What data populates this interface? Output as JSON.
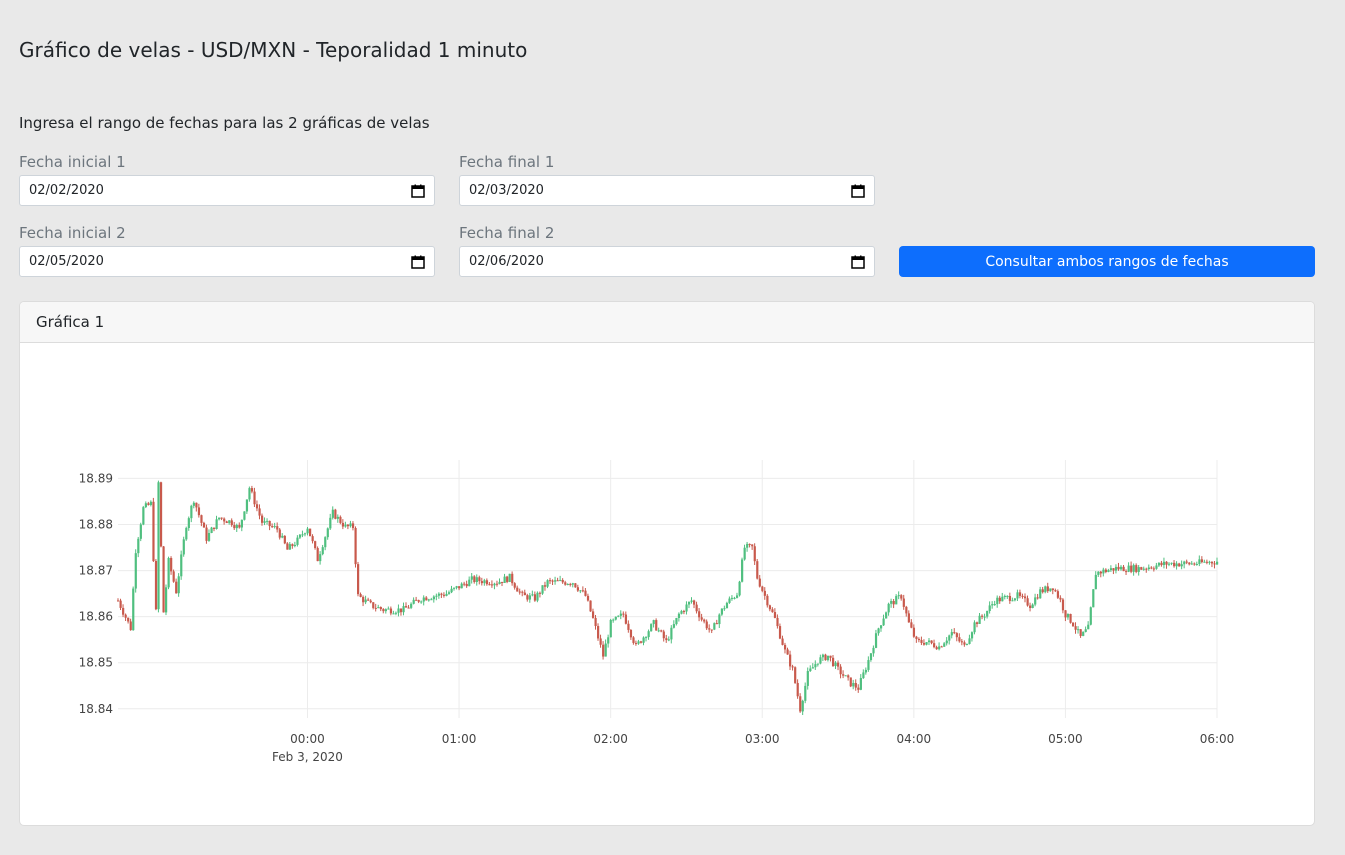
{
  "title": "Gráfico de velas - USD/MXN - Teporalidad 1 minuto",
  "instructions": "Ingresa el rango de fechas para las 2 gráficas de velas",
  "form": {
    "start1_label": "Fecha inicial 1",
    "start1_value": "02/02/2020",
    "end1_label": "Fecha final 1",
    "end1_value": "02/03/2020",
    "start2_label": "Fecha inicial 2",
    "start2_value": "02/05/2020",
    "end2_label": "Fecha final 2",
    "end2_value": "02/06/2020",
    "submit_label": "Consultar ambos rangos de fechas",
    "calendar_icon": "calendar-icon"
  },
  "card": {
    "title": "Gráfica 1"
  },
  "colors": {
    "accent": "#0d6efd",
    "increasing": "#4fbf7f",
    "decreasing": "#c8594c"
  },
  "chart_data": {
    "type": "candlestick",
    "title": "",
    "xlabel": "",
    "ylabel": "",
    "date_label": "Feb 3, 2020",
    "x_ticks": [
      "00:00",
      "01:00",
      "02:00",
      "03:00",
      "04:00",
      "05:00",
      "06:00"
    ],
    "y_ticks": [
      18.84,
      18.85,
      18.86,
      18.87,
      18.88,
      18.89
    ],
    "xlim_minutes": [
      -75,
      360
    ],
    "ylim": [
      18.838,
      18.894
    ],
    "grid": true,
    "legend": "none",
    "waypoints": [
      [
        -75,
        18.8635
      ],
      [
        -70,
        18.8575
      ],
      [
        -68,
        18.8745
      ],
      [
        -65,
        18.8835
      ],
      [
        -62,
        18.8845
      ],
      [
        -60,
        18.861
      ],
      [
        -59,
        18.889
      ],
      [
        -57,
        18.861
      ],
      [
        -55,
        18.872
      ],
      [
        -52,
        18.8655
      ],
      [
        -48,
        18.88
      ],
      [
        -45,
        18.8855
      ],
      [
        -40,
        18.877
      ],
      [
        -35,
        18.8815
      ],
      [
        -30,
        18.8805
      ],
      [
        -27,
        18.879
      ],
      [
        -23,
        18.888
      ],
      [
        -18,
        18.8805
      ],
      [
        -12,
        18.879
      ],
      [
        -8,
        18.8745
      ],
      [
        -4,
        18.8765
      ],
      [
        0,
        18.8795
      ],
      [
        4,
        18.8725
      ],
      [
        10,
        18.8825
      ],
      [
        15,
        18.8795
      ],
      [
        18,
        18.8795
      ],
      [
        20,
        18.8645
      ],
      [
        25,
        18.8625
      ],
      [
        30,
        18.8615
      ],
      [
        38,
        18.8615
      ],
      [
        45,
        18.864
      ],
      [
        55,
        18.865
      ],
      [
        65,
        18.868
      ],
      [
        75,
        18.8675
      ],
      [
        80,
        18.8685
      ],
      [
        85,
        18.8645
      ],
      [
        90,
        18.864
      ],
      [
        95,
        18.8675
      ],
      [
        105,
        18.8675
      ],
      [
        110,
        18.8645
      ],
      [
        113,
        18.8595
      ],
      [
        117,
        18.8515
      ],
      [
        120,
        18.8585
      ],
      [
        125,
        18.8605
      ],
      [
        130,
        18.8535
      ],
      [
        137,
        18.8585
      ],
      [
        142,
        18.8545
      ],
      [
        147,
        18.8605
      ],
      [
        152,
        18.8635
      ],
      [
        156,
        18.8595
      ],
      [
        160,
        18.8565
      ],
      [
        163,
        18.8605
      ],
      [
        166,
        18.863
      ],
      [
        170,
        18.865
      ],
      [
        173,
        18.875
      ],
      [
        176,
        18.875
      ],
      [
        178,
        18.8685
      ],
      [
        181,
        18.8645
      ],
      [
        185,
        18.8595
      ],
      [
        189,
        18.8525
      ],
      [
        192,
        18.8485
      ],
      [
        195,
        18.84
      ],
      [
        198,
        18.8475
      ],
      [
        202,
        18.8505
      ],
      [
        206,
        18.8515
      ],
      [
        210,
        18.8485
      ],
      [
        215,
        18.8455
      ],
      [
        218,
        18.8445
      ],
      [
        222,
        18.8505
      ],
      [
        226,
        18.8575
      ],
      [
        230,
        18.8625
      ],
      [
        235,
        18.8645
      ],
      [
        238,
        18.8585
      ],
      [
        241,
        18.8545
      ],
      [
        245,
        18.8545
      ],
      [
        250,
        18.8535
      ],
      [
        255,
        18.8565
      ],
      [
        260,
        18.8535
      ],
      [
        264,
        18.8585
      ],
      [
        268,
        18.8605
      ],
      [
        272,
        18.8635
      ],
      [
        276,
        18.864
      ],
      [
        281,
        18.8645
      ],
      [
        286,
        18.8625
      ],
      [
        290,
        18.8655
      ],
      [
        295,
        18.8665
      ],
      [
        298,
        18.8635
      ],
      [
        300,
        18.8605
      ],
      [
        303,
        18.8585
      ],
      [
        306,
        18.8555
      ],
      [
        309,
        18.8575
      ],
      [
        312,
        18.8695
      ],
      [
        320,
        18.8705
      ],
      [
        330,
        18.8705
      ],
      [
        340,
        18.8715
      ],
      [
        350,
        18.8715
      ],
      [
        360,
        18.872
      ]
    ]
  }
}
